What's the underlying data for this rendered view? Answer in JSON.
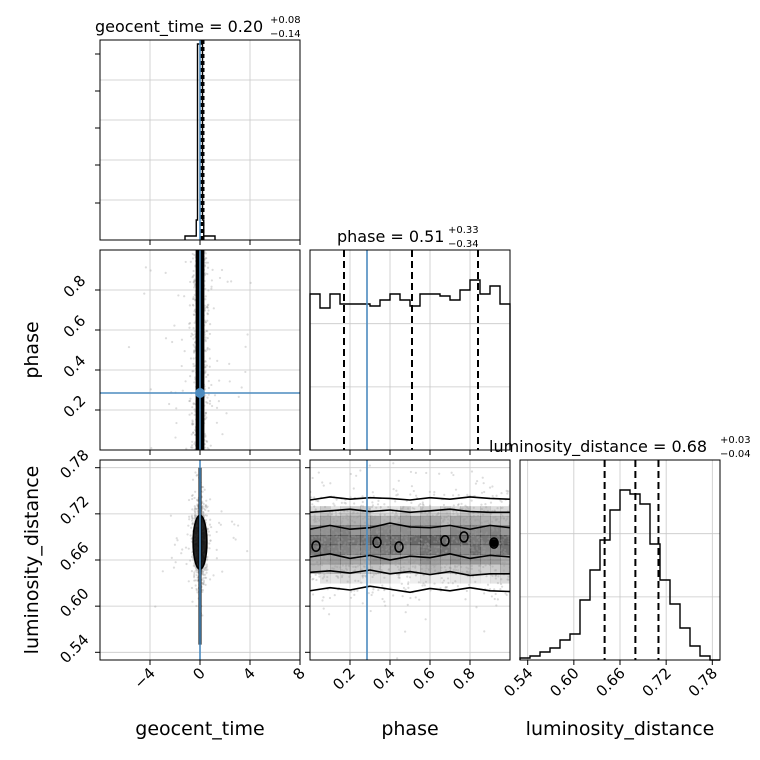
{
  "chart_data": {
    "type": "corner",
    "parameters": [
      "geocent_time",
      "phase",
      "luminosity_distance"
    ],
    "injection": {
      "geocent_time": 0.0,
      "phase": 0.285,
      "luminosity_distance": null
    },
    "injection_color": "#4c8bbf",
    "titles": {
      "geocent_time": {
        "label": "geocent_time = 0.20",
        "sup": "+0.08",
        "sub": "−0.14"
      },
      "phase": {
        "label": "phase = 0.51",
        "sup": "+0.33",
        "sub": "−0.34"
      },
      "luminosity_distance": {
        "label": "luminosity_distance = 0.68",
        "sup": "+0.03",
        "sub": "−0.04"
      }
    },
    "axis_labels": {
      "geocent_time": "geocent_time",
      "phase": "phase",
      "luminosity_distance": "luminosity_distance"
    },
    "ticks": {
      "geocent_time": [
        "−4",
        "0",
        "4",
        "8"
      ],
      "phase": [
        "0.2",
        "0.4",
        "0.6",
        "0.8"
      ],
      "luminosity_distance": [
        "0.54",
        "0.60",
        "0.66",
        "0.72",
        "0.78"
      ]
    },
    "ranges": {
      "geocent_time": [
        -8,
        8
      ],
      "phase": [
        0,
        1
      ],
      "luminosity_distance": [
        0.53,
        0.79
      ]
    },
    "quantiles": {
      "geocent_time": [
        0.06,
        0.2,
        0.28
      ],
      "phase": [
        0.17,
        0.51,
        0.84
      ],
      "luminosity_distance": [
        0.64,
        0.68,
        0.71
      ]
    },
    "histograms": {
      "geocent_time": {
        "edges": [
          -1.2,
          -0.3,
          -0.2,
          0.2,
          0.3,
          1.2
        ],
        "counts": [
          0.02,
          0.1,
          0.98,
          0.1,
          0.02
        ]
      },
      "phase": {
        "edges": [
          0.0,
          0.05,
          0.1,
          0.15,
          0.2,
          0.25,
          0.3,
          0.35,
          0.4,
          0.45,
          0.5,
          0.55,
          0.6,
          0.65,
          0.7,
          0.75,
          0.8,
          0.85,
          0.9,
          0.95,
          1.0
        ],
        "counts": [
          0.78,
          0.71,
          0.78,
          0.73,
          0.73,
          0.73,
          0.72,
          0.75,
          0.78,
          0.75,
          0.72,
          0.78,
          0.78,
          0.77,
          0.75,
          0.8,
          0.85,
          0.78,
          0.82,
          0.73
        ]
      },
      "luminosity_distance": {
        "edges": [
          0.53,
          0.543,
          0.556,
          0.569,
          0.582,
          0.595,
          0.608,
          0.621,
          0.634,
          0.647,
          0.66,
          0.673,
          0.686,
          0.699,
          0.712,
          0.725,
          0.738,
          0.751,
          0.764,
          0.777,
          0.79
        ],
        "counts": [
          0.01,
          0.02,
          0.04,
          0.06,
          0.1,
          0.13,
          0.3,
          0.45,
          0.6,
          0.75,
          0.85,
          0.83,
          0.78,
          0.58,
          0.4,
          0.28,
          0.16,
          0.07,
          0.02,
          0.0
        ]
      }
    },
    "contours_2d": {
      "luminosity_distance_vs_phase": [
        {
          "level": 0.393,
          "y_upper": [
            0.7,
            0.705,
            0.7,
            0.702,
            0.708,
            0.703,
            0.702,
            0.705,
            0.7,
            0.705,
            0.702
          ],
          "y_lower": [
            0.664,
            0.668,
            0.662,
            0.666,
            0.66,
            0.665,
            0.663,
            0.668,
            0.662,
            0.666,
            0.664
          ]
        },
        {
          "level": 0.865,
          "y_upper": [
            0.722,
            0.724,
            0.726,
            0.723,
            0.725,
            0.722,
            0.724,
            0.726,
            0.723,
            0.722,
            0.722
          ],
          "y_lower": [
            0.644,
            0.646,
            0.643,
            0.647,
            0.642,
            0.645,
            0.641,
            0.645,
            0.64,
            0.642,
            0.642
          ]
        },
        {
          "level": 0.989,
          "y_upper": [
            0.738,
            0.742,
            0.739,
            0.741,
            0.74,
            0.738,
            0.741,
            0.739,
            0.742,
            0.74,
            0.739
          ],
          "y_lower": [
            0.62,
            0.624,
            0.621,
            0.626,
            0.622,
            0.618,
            0.623,
            0.62,
            0.624,
            0.62,
            0.619
          ]
        }
      ],
      "luminosity_distance_vs_geocent_time": {
        "center": [
          0.0,
          0.683
        ],
        "x_half_width": 0.55,
        "y_half_height": 0.035
      }
    },
    "grid": true
  }
}
